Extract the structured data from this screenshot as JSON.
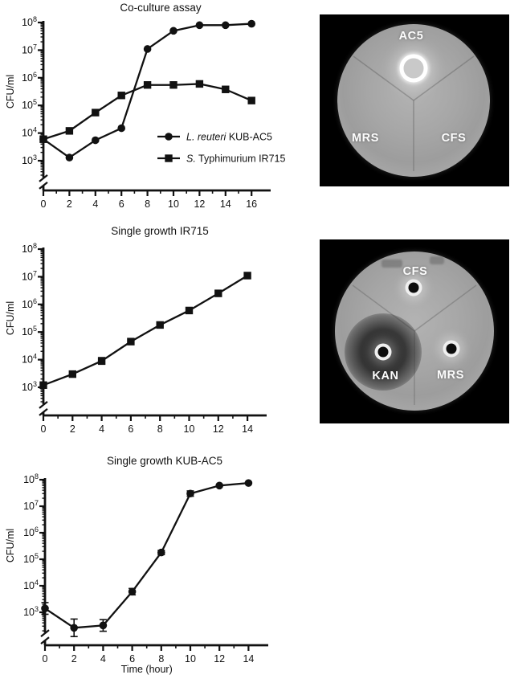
{
  "figure": {
    "background": "#ffffff",
    "line_color": "#111111",
    "marker_color": "#111111"
  },
  "chart_data": [
    {
      "type": "line",
      "title": "Co-culture assay",
      "ylabel": "CFU/ml",
      "xlabel": "",
      "y_scale": "log10",
      "ylim_exponents": [
        3,
        8
      ],
      "y_ticks_exponents": [
        3,
        4,
        5,
        6,
        7,
        8
      ],
      "x_ticks": [
        0,
        2,
        4,
        6,
        8,
        10,
        12,
        14,
        16
      ],
      "axis_break": true,
      "grid": false,
      "legend_position": "inside-lower-right",
      "series": [
        {
          "name": "L. reuteri KUB-AC5",
          "legend_italic": "L. reuteri",
          "legend_rest": " KUB-AC5",
          "marker": "circle",
          "x": [
            0,
            2,
            4,
            6,
            8,
            10,
            12,
            14,
            16
          ],
          "y": [
            6000,
            1300,
            5500,
            15000,
            11000000,
            50000000,
            80000000,
            80000000,
            90000000
          ]
        },
        {
          "name": "S. Typhimurium IR715",
          "legend_italic": "S.",
          "legend_rest": " Typhimurium IR715",
          "marker": "square",
          "x": [
            0,
            2,
            4,
            6,
            8,
            10,
            12,
            14,
            16
          ],
          "y": [
            6000,
            12000,
            55000,
            230000,
            550000,
            550000,
            600000,
            380000,
            150000
          ]
        }
      ]
    },
    {
      "type": "line",
      "title": "Single growth IR715",
      "ylabel": "CFU/ml",
      "xlabel": "",
      "y_scale": "log10",
      "ylim_exponents": [
        3,
        8
      ],
      "y_ticks_exponents": [
        3,
        4,
        5,
        6,
        7,
        8
      ],
      "x_ticks": [
        0,
        2,
        4,
        6,
        8,
        10,
        12,
        14
      ],
      "axis_break": true,
      "grid": false,
      "series": [
        {
          "name": "S. Typhimurium IR715",
          "marker": "square",
          "x": [
            0,
            2,
            4,
            6,
            8,
            10,
            12,
            14
          ],
          "y": [
            1200,
            3000,
            9000,
            45000,
            180000,
            600000,
            2500000,
            11000000
          ],
          "err_log": [
            0,
            0,
            0.12,
            0,
            0,
            0,
            0,
            0
          ]
        }
      ]
    },
    {
      "type": "line",
      "title": "Single growth KUB-AC5",
      "ylabel": "CFU/ml",
      "xlabel": "Time (hour)",
      "y_scale": "log10",
      "ylim_exponents": [
        3,
        8
      ],
      "y_ticks_exponents": [
        3,
        4,
        5,
        6,
        7,
        8
      ],
      "x_ticks": [
        0,
        2,
        4,
        6,
        8,
        10,
        12,
        14
      ],
      "axis_break": true,
      "grid": false,
      "series": [
        {
          "name": "L. reuteri KUB-AC5",
          "marker": "circle",
          "x": [
            0,
            2,
            4,
            6,
            8,
            10,
            12,
            14
          ],
          "y": [
            1400,
            260,
            320,
            6000,
            180000,
            30000000,
            60000000,
            75000000
          ],
          "err_log": [
            0.22,
            0.33,
            0.22,
            0.12,
            0.08,
            0.1,
            0,
            0
          ]
        }
      ]
    }
  ],
  "plates": [
    {
      "labels": [
        {
          "text": "AC5"
        },
        {
          "text": "MRS"
        },
        {
          "text": "CFS"
        }
      ]
    },
    {
      "labels": [
        {
          "text": "CFS"
        },
        {
          "text": "KAN"
        },
        {
          "text": "MRS"
        }
      ]
    }
  ]
}
